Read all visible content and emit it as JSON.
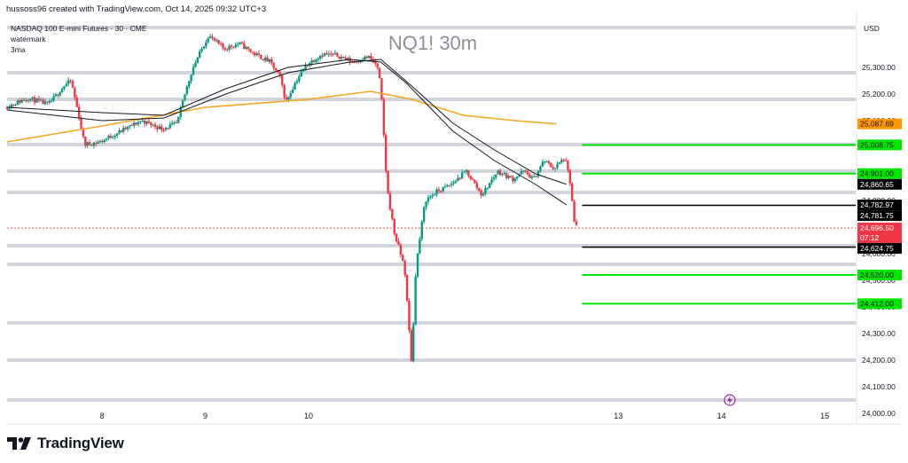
{
  "header": {
    "attribution": "hussoss96 created with TradingView.com, Oct 14, 2025 09:32 UTC+3"
  },
  "legend": {
    "symbol_line": "NASDAQ 100 E-mini Futures · 30 · CME",
    "line2": "watermark",
    "line3": "3ma"
  },
  "watermark_text": "NQ1! 30m",
  "brand": {
    "text": "TradingView"
  },
  "colors": {
    "up": "#089981",
    "down": "#f23645",
    "ma_orange": "#f5a623",
    "ma_dark": "#131722",
    "level_gray": "#d1d4dc",
    "level_green": "#00e600",
    "label_black": "#000000",
    "label_red": "#f23645",
    "label_orange": "#ff9800",
    "alert_purple": "#9c27b0"
  },
  "chart_data": {
    "type": "candlestick",
    "currency": "USD",
    "ylim": [
      23960,
      25480
    ],
    "y_ticks": [
      24000,
      24100,
      24200,
      24300,
      24400,
      24500,
      24600,
      24700,
      24800,
      24900,
      25000,
      25100,
      25200,
      25300
    ],
    "y_tick_labels": [
      "24,000.00",
      "24,100.00",
      "24,200.00",
      "24,300.00",
      "24,400.00",
      "24,500.00",
      "24,600.00",
      "24,700.00",
      "24,800.00",
      "24,900.00",
      "25,000.00",
      "25,100.00",
      "25,200.00",
      "25,300.00"
    ],
    "x_ticks": [
      {
        "label": "8",
        "x": 8
      },
      {
        "label": "9",
        "x": 9
      },
      {
        "label": "10",
        "x": 10
      },
      {
        "label": "13",
        "x": 13
      },
      {
        "label": "14",
        "x": 14
      },
      {
        "label": "15",
        "x": 15
      }
    ],
    "xlim": [
      7.08,
      15.3
    ],
    "gray_levels": [
      25450,
      25280,
      25180,
      25010,
      24910,
      24830,
      24630,
      24560,
      24340,
      24200,
      24050
    ],
    "green_levels": [
      25008.75,
      24901.0,
      24520.0,
      24412.0
    ],
    "black_levels": [
      24781.75,
      24624.75
    ],
    "current_price": 24696.5,
    "price_labels": [
      {
        "text": "25,087.69",
        "kind": "orange",
        "value": 25087.69
      },
      {
        "text": "25,008.75",
        "kind": "green",
        "value": 25008.75
      },
      {
        "text": "24,901.00",
        "kind": "green",
        "value": 24901.0
      },
      {
        "text": "24,860.65",
        "kind": "black",
        "value": 24860.65
      },
      {
        "text": "24,782.97",
        "kind": "black",
        "value": 24782.97
      },
      {
        "text": "24,781.75",
        "kind": "black",
        "value": 24781.75
      },
      {
        "text": "24,696.50",
        "kind": "red",
        "value": 24696.5
      },
      {
        "text": "07:12",
        "kind": "red-sub",
        "value": 24696.5
      },
      {
        "text": "24,624.75",
        "kind": "black",
        "value": 24624.75
      },
      {
        "text": "24,520.00",
        "kind": "green",
        "value": 24520.0
      },
      {
        "text": "24,412.00",
        "kind": "green",
        "value": 24412.0
      }
    ],
    "price_path": [
      [
        7.08,
        25150
      ],
      [
        7.3,
        25185
      ],
      [
        7.5,
        25160
      ],
      [
        7.65,
        25230
      ],
      [
        7.72,
        25250
      ],
      [
        7.8,
        25110
      ],
      [
        7.85,
        25010
      ],
      [
        8.0,
        25020
      ],
      [
        8.2,
        25060
      ],
      [
        8.4,
        25100
      ],
      [
        8.6,
        25070
      ],
      [
        8.75,
        25090
      ],
      [
        8.8,
        25170
      ],
      [
        8.9,
        25300
      ],
      [
        9.0,
        25380
      ],
      [
        9.05,
        25420
      ],
      [
        9.2,
        25370
      ],
      [
        9.35,
        25390
      ],
      [
        9.5,
        25350
      ],
      [
        9.65,
        25320
      ],
      [
        9.75,
        25260
      ],
      [
        9.8,
        25170
      ],
      [
        9.9,
        25250
      ],
      [
        10.0,
        25310
      ],
      [
        10.15,
        25350
      ],
      [
        10.3,
        25345
      ],
      [
        10.45,
        25320
      ],
      [
        10.6,
        25340
      ],
      [
        10.68,
        25310
      ],
      [
        10.72,
        25230
      ],
      [
        10.78,
        24850
      ],
      [
        10.85,
        24680
      ],
      [
        10.95,
        24550
      ],
      [
        11.02,
        24180
      ],
      [
        11.06,
        24550
      ],
      [
        11.15,
        24800
      ],
      [
        11.25,
        24830
      ],
      [
        11.4,
        24860
      ],
      [
        11.55,
        24910
      ],
      [
        11.7,
        24820
      ],
      [
        11.85,
        24910
      ],
      [
        12.0,
        24880
      ],
      [
        12.1,
        24910
      ],
      [
        12.2,
        24880
      ],
      [
        12.3,
        24950
      ],
      [
        12.4,
        24920
      ],
      [
        12.5,
        24960
      ],
      [
        12.55,
        24880
      ],
      [
        12.6,
        24700
      ]
    ],
    "series": [
      {
        "name": "",
        "color_key": "ma_orange",
        "points": [
          [
            7.08,
            25020
          ],
          [
            8.0,
            25080
          ],
          [
            9.0,
            25150
          ],
          [
            10.0,
            25180
          ],
          [
            10.6,
            25210
          ],
          [
            11.0,
            25180
          ],
          [
            11.5,
            25120
          ],
          [
            12.0,
            25100
          ],
          [
            12.4,
            25087.69
          ]
        ]
      },
      {
        "name": "",
        "color_key": "ma_dark",
        "points": [
          [
            7.08,
            25140
          ],
          [
            8.0,
            25100
          ],
          [
            8.6,
            25110
          ],
          [
            9.2,
            25200
          ],
          [
            9.8,
            25280
          ],
          [
            10.4,
            25320
          ],
          [
            10.7,
            25330
          ],
          [
            11.0,
            25230
          ],
          [
            11.4,
            25090
          ],
          [
            11.8,
            24990
          ],
          [
            12.2,
            24900
          ],
          [
            12.5,
            24860.65
          ]
        ]
      },
      {
        "name": "",
        "color_key": "ma_dark",
        "points": [
          [
            7.08,
            25150
          ],
          [
            8.0,
            25130
          ],
          [
            8.6,
            25120
          ],
          [
            9.2,
            25220
          ],
          [
            9.8,
            25300
          ],
          [
            10.4,
            25330
          ],
          [
            10.7,
            25320
          ],
          [
            10.95,
            25240
          ],
          [
            11.4,
            25060
          ],
          [
            11.8,
            24950
          ],
          [
            12.2,
            24860
          ],
          [
            12.5,
            24782.97
          ]
        ]
      }
    ]
  }
}
